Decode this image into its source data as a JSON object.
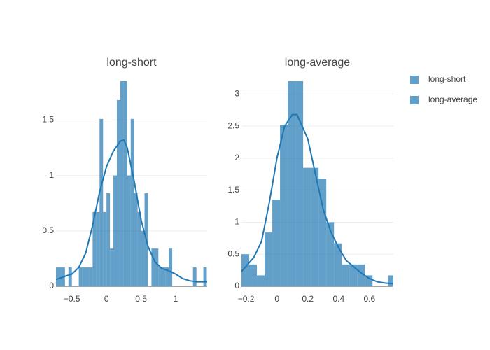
{
  "chart_data": [
    {
      "type": "histogram",
      "title": "long-short",
      "xlim": [
        -0.73,
        1.455
      ],
      "ylim": [
        0,
        1.85
      ],
      "xticks": [
        {
          "value": -0.5,
          "label": "−0.5"
        },
        0,
        0.5,
        1
      ],
      "yticks": [
        0,
        0.5,
        1,
        1.5
      ],
      "grid": true,
      "legend": "right",
      "series": [
        {
          "name": "long-short",
          "color": "#1f77b4",
          "bins": [
            -0.75,
            -0.7,
            -0.65,
            -0.6,
            -0.55,
            -0.5,
            -0.45,
            -0.4,
            -0.35,
            -0.3,
            -0.25,
            -0.2,
            -0.15,
            -0.1,
            -0.05,
            0,
            0.05,
            0.1,
            0.15,
            0.2,
            0.25,
            0.3,
            0.35,
            0.4,
            0.45,
            0.5,
            0.55,
            0.6,
            0.65,
            0.7,
            0.75,
            0.8,
            0.85,
            0.9,
            0.95,
            1,
            1.05,
            1.1,
            1.15,
            1.2,
            1.25,
            1.3,
            1.35,
            1.4,
            1.45
          ],
          "values": [
            0.17,
            0.17,
            0.17,
            0,
            0.17,
            0,
            0,
            0.17,
            0.17,
            0.17,
            0.17,
            0.67,
            0.67,
            1.51,
            0.67,
            0.84,
            0.34,
            1.0,
            1.68,
            1.85,
            1.85,
            1.0,
            1.51,
            0.84,
            0.67,
            0.5,
            0.84,
            0,
            0.34,
            0.34,
            0.17,
            0.17,
            0.17,
            0.34,
            0,
            0,
            0,
            0,
            0,
            0,
            0.17,
            0,
            0,
            0.17
          ],
          "kde_x": [
            -0.73,
            -0.6,
            -0.5,
            -0.4,
            -0.3,
            -0.2,
            -0.1,
            0,
            0.1,
            0.2,
            0.25,
            0.3,
            0.4,
            0.5,
            0.6,
            0.7,
            0.8,
            0.9,
            1.0,
            1.1,
            1.2,
            1.3,
            1.455
          ],
          "kde_y": [
            0.06,
            0.09,
            0.11,
            0.17,
            0.3,
            0.55,
            0.85,
            1.08,
            1.22,
            1.31,
            1.32,
            1.25,
            0.95,
            0.6,
            0.36,
            0.22,
            0.16,
            0.14,
            0.11,
            0.07,
            0.05,
            0.04,
            0.04
          ]
        }
      ]
    },
    {
      "type": "histogram",
      "title": "long-average",
      "xlim": [
        -0.23,
        0.755
      ],
      "ylim": [
        0,
        3.2
      ],
      "xticks": [
        {
          "value": -0.2,
          "label": "−0.2"
        },
        0,
        0.2,
        0.4,
        0.6
      ],
      "yticks": [
        0,
        0.5,
        1,
        1.5,
        2,
        2.5,
        3
      ],
      "grid": true,
      "series": [
        {
          "name": "long-average",
          "color": "#1f77b4",
          "bins": [
            -0.23,
            -0.18,
            -0.13,
            -0.08,
            -0.03,
            0.02,
            0.07,
            0.12,
            0.17,
            0.22,
            0.27,
            0.32,
            0.37,
            0.42,
            0.47,
            0.52,
            0.57,
            0.62,
            0.67,
            0.72,
            0.77
          ],
          "values": [
            0.5,
            0.34,
            0.17,
            0.84,
            1.35,
            2.52,
            3.2,
            3.2,
            1.85,
            1.85,
            1.68,
            1.0,
            0.67,
            0.34,
            0.34,
            0.34,
            0.17,
            0,
            0,
            0.17
          ],
          "kde_x": [
            -0.23,
            -0.15,
            -0.1,
            -0.05,
            0,
            0.05,
            0.1,
            0.13,
            0.2,
            0.25,
            0.3,
            0.35,
            0.4,
            0.45,
            0.5,
            0.55,
            0.6,
            0.65,
            0.7,
            0.755
          ],
          "kde_y": [
            0.23,
            0.45,
            0.7,
            1.3,
            2.0,
            2.5,
            2.68,
            2.68,
            2.3,
            1.75,
            1.2,
            0.85,
            0.6,
            0.4,
            0.3,
            0.2,
            0.12,
            0.07,
            0.05,
            0.04
          ]
        }
      ]
    }
  ]
}
